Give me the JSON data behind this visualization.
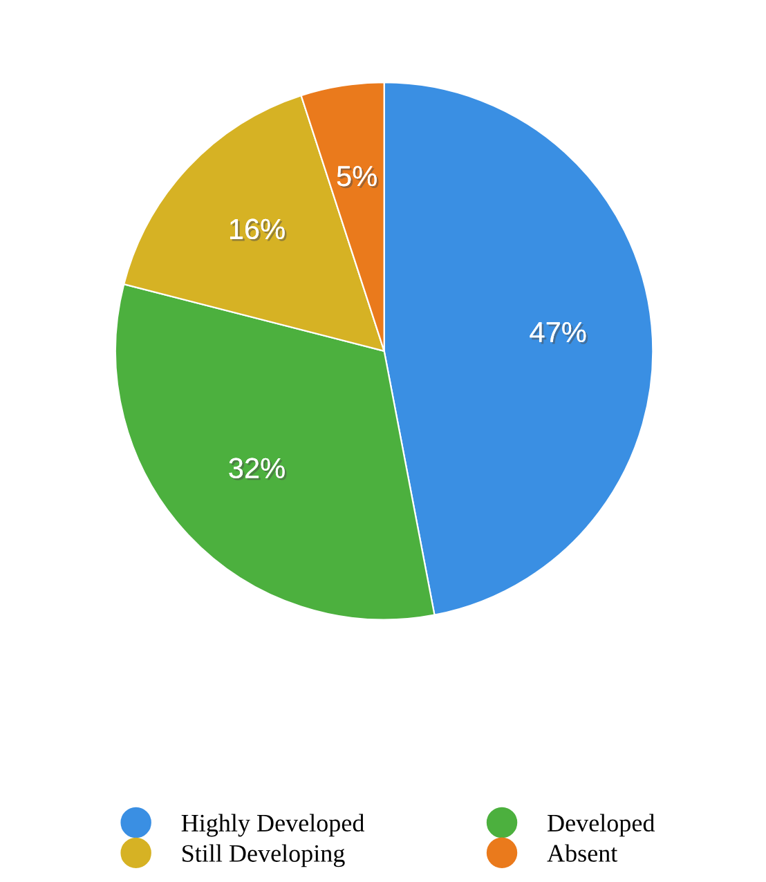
{
  "chart_data": {
    "type": "pie",
    "categories": [
      "Highly Developed",
      "Developed",
      "Still Developing",
      "Absent"
    ],
    "values": [
      47,
      32,
      16,
      5
    ],
    "colors": [
      "#3a8fe3",
      "#4cb03e",
      "#d6b224",
      "#ea7a1c"
    ],
    "value_labels": [
      "47%",
      "32%",
      "16%",
      "5%"
    ],
    "legend": "bottom"
  }
}
